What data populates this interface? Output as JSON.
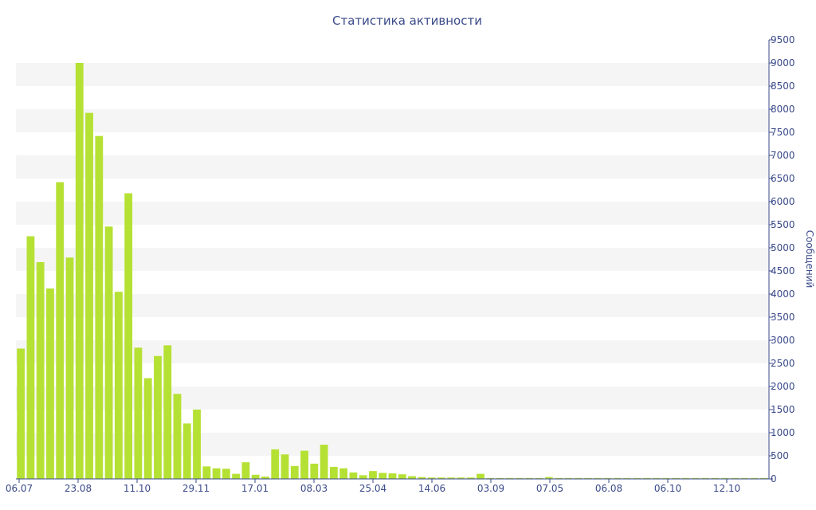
{
  "colors": {
    "bar": "#b5e134",
    "band": "#f5f5f5",
    "axis": "#3a4a8a",
    "text": "#3a4a8a"
  },
  "chart_data": {
    "type": "bar",
    "title": "Статистика активности",
    "ylabel": "Сообщений",
    "ylim": [
      0,
      9500
    ],
    "yticks": [
      0,
      500,
      1000,
      1500,
      2000,
      2500,
      3000,
      3500,
      4000,
      4500,
      5000,
      5500,
      6000,
      6500,
      7000,
      7500,
      8000,
      8500,
      9000,
      9500
    ],
    "y_axis_side": "right",
    "grid": "alternating-bands",
    "xtick_labels": [
      "06.07",
      "23.08",
      "11.10",
      "29.11",
      "17.01",
      "08.03",
      "25.04",
      "14.06",
      "03.09",
      "07.05",
      "06.08",
      "06.10",
      "12.10"
    ],
    "values": [
      2820,
      5250,
      4690,
      4120,
      6420,
      4790,
      9000,
      7920,
      7420,
      5460,
      4050,
      6180,
      2840,
      2180,
      2660,
      2890,
      1840,
      1200,
      1500,
      270,
      230,
      220,
      110,
      360,
      90,
      50,
      640,
      530,
      280,
      610,
      330,
      740,
      260,
      230,
      140,
      80,
      170,
      130,
      120,
      100,
      60,
      40,
      30,
      30,
      30,
      30,
      30,
      110,
      20,
      20,
      20,
      20,
      20,
      20,
      40,
      20,
      20,
      20,
      20,
      20,
      20,
      20,
      20,
      20,
      20,
      20,
      20,
      20,
      20,
      20,
      20,
      20,
      20,
      20,
      20,
      20,
      20
    ]
  }
}
